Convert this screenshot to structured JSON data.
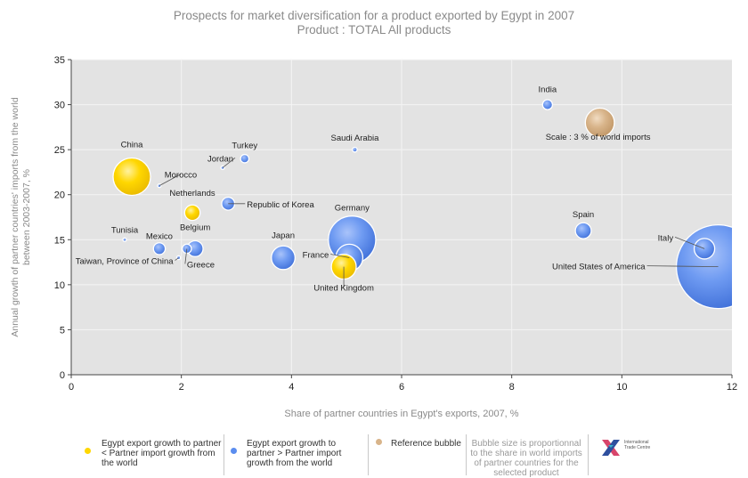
{
  "title": "Prospects for market diversification for a product exported by Egypt in 2007",
  "subtitle": "Product : TOTAL All products",
  "chart_data": {
    "type": "scatter",
    "subtype": "bubble",
    "title": "Prospects for market diversification for a product exported by Egypt in 2007",
    "subtitle": "Product : TOTAL All products",
    "xlabel": "Share of partner countries in Egypt's exports, 2007, %",
    "ylabel": "Annual growth of partner countries' imports from the world between 2003-2007, %",
    "xlim": [
      0,
      12
    ],
    "ylim": [
      0,
      35
    ],
    "xticks": [
      "0",
      "2",
      "4",
      "6",
      "8",
      "10",
      "12"
    ],
    "yticks": [
      "0",
      "5",
      "10",
      "15",
      "20",
      "25",
      "30",
      "35"
    ],
    "grid": true,
    "colors": {
      "yellow": "#FFD700",
      "blue": "#5B8DEF",
      "reference": "#D8B48A",
      "plot_bg": "#e3e3e3"
    },
    "series": [
      {
        "name": "Egypt export growth to partner < Partner import growth from the world",
        "color": "yellow",
        "points": [
          {
            "label": "China",
            "x": 1.1,
            "y": 22.0,
            "size": 5.0
          },
          {
            "label": "Netherlands",
            "x": 2.2,
            "y": 18.0,
            "size": 0.85
          },
          {
            "label": "United Kingdom",
            "x": 4.95,
            "y": 12.0,
            "size": 2.2
          }
        ]
      },
      {
        "name": "Egypt export growth to partner > Partner import growth from the world",
        "color": "blue",
        "points": [
          {
            "label": "India",
            "x": 8.65,
            "y": 30.0,
            "size": 0.35
          },
          {
            "label": "Saudi Arabia",
            "x": 5.15,
            "y": 25.0,
            "size": 0.08
          },
          {
            "label": "Turkey",
            "x": 3.15,
            "y": 24.0,
            "size": 0.25
          },
          {
            "label": "Jordan",
            "x": 2.75,
            "y": 23.0,
            "size": 0.02
          },
          {
            "label": "Morocco",
            "x": 1.6,
            "y": 21.0,
            "size": 0.02
          },
          {
            "label": "Republic of Korea",
            "x": 2.85,
            "y": 19.0,
            "size": 0.6
          },
          {
            "label": "Germany",
            "x": 5.1,
            "y": 15.0,
            "size": 8.0
          },
          {
            "label": "France",
            "x": 5.05,
            "y": 13.0,
            "size": 2.6
          },
          {
            "label": "Japan",
            "x": 3.85,
            "y": 13.0,
            "size": 2.0
          },
          {
            "label": "Belgium",
            "x": 2.25,
            "y": 14.0,
            "size": 0.9
          },
          {
            "label": "Mexico",
            "x": 1.6,
            "y": 14.0,
            "size": 0.5
          },
          {
            "label": "Tunisia",
            "x": 0.97,
            "y": 15.0,
            "size": 0.01
          },
          {
            "label": "Greece",
            "x": 2.1,
            "y": 14.0,
            "size": 0.3
          },
          {
            "label": "Taiwan, Province of China",
            "x": 1.95,
            "y": 13.0,
            "size": 0.05
          },
          {
            "label": "Spain",
            "x": 9.3,
            "y": 16.0,
            "size": 0.9
          },
          {
            "label": "United States of America",
            "x": 11.75,
            "y": 12.0,
            "size": 25.0
          },
          {
            "label": "Italy",
            "x": 11.5,
            "y": 14.0,
            "size": 1.5
          }
        ]
      },
      {
        "name": "Reference bubble",
        "color": "reference",
        "points": [
          {
            "label": "Scale : 3 % of world imports",
            "x": 9.6,
            "y": 28.0,
            "size": 3.0
          }
        ]
      }
    ]
  },
  "legend": {
    "item1": "Egypt export growth to partner < Partner import growth from the world",
    "item2": "Egypt export growth to partner > Partner import growth from the world",
    "item3": "Reference bubble",
    "note": "Bubble size is proportionnal to the share in world imports of partner countries for the selected product",
    "logo_text": "International Trade Centre"
  }
}
